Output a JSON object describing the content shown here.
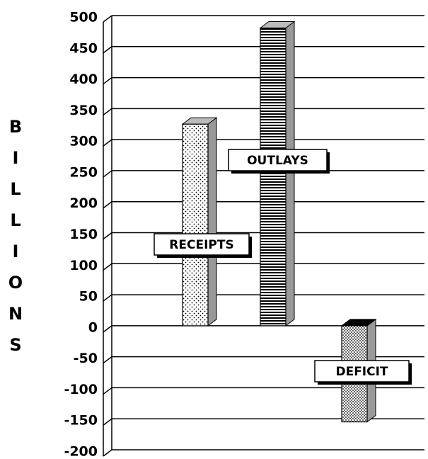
{
  "chart_data": {
    "type": "bar3d",
    "y_label": "BILLIONS",
    "categories": [
      "RECEIPTS",
      "OUTLAYS",
      "DEFICIT"
    ],
    "values": [
      325,
      480,
      -155
    ],
    "ylim": [
      -200,
      500
    ],
    "yticks": [
      -200,
      -150,
      -100,
      -50,
      0,
      50,
      100,
      150,
      200,
      250,
      300,
      350,
      400,
      450,
      500
    ],
    "grid": true
  }
}
